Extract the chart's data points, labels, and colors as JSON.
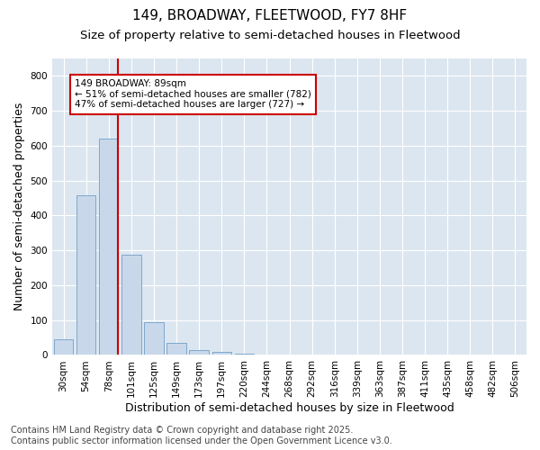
{
  "title1": "149, BROADWAY, FLEETWOOD, FY7 8HF",
  "title2": "Size of property relative to semi-detached houses in Fleetwood",
  "xlabel": "Distribution of semi-detached houses by size in Fleetwood",
  "ylabel": "Number of semi-detached properties",
  "categories": [
    "30sqm",
    "54sqm",
    "78sqm",
    "101sqm",
    "125sqm",
    "149sqm",
    "173sqm",
    "197sqm",
    "220sqm",
    "244sqm",
    "268sqm",
    "292sqm",
    "316sqm",
    "339sqm",
    "363sqm",
    "387sqm",
    "411sqm",
    "435sqm",
    "458sqm",
    "482sqm",
    "506sqm"
  ],
  "values": [
    44,
    458,
    620,
    287,
    93,
    35,
    14,
    10,
    5,
    0,
    0,
    0,
    0,
    0,
    0,
    0,
    0,
    0,
    0,
    0,
    0
  ],
  "bar_color": "#c8d8ea",
  "bar_edge_color": "#7da8cc",
  "vline_x_index": 2,
  "vline_color": "#cc0000",
  "annotation_text": "149 BROADWAY: 89sqm\n← 51% of semi-detached houses are smaller (782)\n47% of semi-detached houses are larger (727) →",
  "annotation_box_facecolor": "#ffffff",
  "annotation_box_edgecolor": "#cc0000",
  "ylim": [
    0,
    850
  ],
  "yticks": [
    0,
    100,
    200,
    300,
    400,
    500,
    600,
    700,
    800
  ],
  "figure_bg": "#ffffff",
  "plot_bg": "#dce6f0",
  "grid_color": "#ffffff",
  "title1_fontsize": 11,
  "title2_fontsize": 9.5,
  "axis_label_fontsize": 9,
  "tick_fontsize": 7.5,
  "footer_fontsize": 7,
  "footer": "Contains HM Land Registry data © Crown copyright and database right 2025.\nContains public sector information licensed under the Open Government Licence v3.0."
}
